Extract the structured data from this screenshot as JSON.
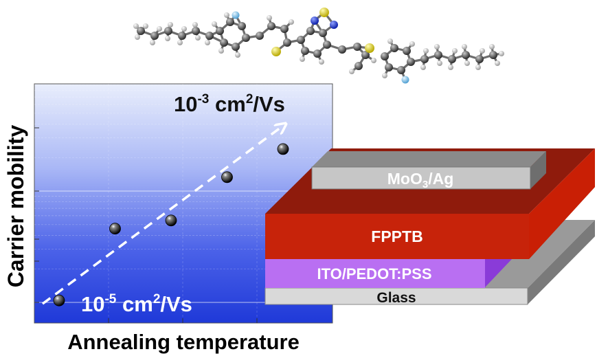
{
  "plot": {
    "y_axis_label": "Carrier mobility",
    "x_axis_label": "Annealing temperature",
    "high_value": {
      "base": "10",
      "exp": "-3",
      "unit_pre": " cm",
      "unit_sup": "2",
      "unit_post": "/Vs"
    },
    "low_value": {
      "base": "10",
      "exp": "-5",
      "unit_pre": " cm",
      "unit_sup": "2",
      "unit_post": "/Vs"
    }
  },
  "chart_data": {
    "type": "scatter",
    "title": "",
    "xlabel": "Annealing temperature",
    "ylabel": "Carrier mobility",
    "x_ticks_printed": false,
    "y_scale": "log",
    "ylim": [
      1e-05,
      0.001
    ],
    "y_range_labels": [
      "10-5 cm2/Vs",
      "10-3 cm2/Vs"
    ],
    "points": [
      {
        "x": 1,
        "y": 1.05e-05
      },
      {
        "x": 2,
        "y": 6.5e-05
      },
      {
        "x": 3,
        "y": 8e-05
      },
      {
        "x": 4,
        "y": 0.00024
      },
      {
        "x": 5,
        "y": 0.00049
      }
    ],
    "trend_arrow": "dashed, white, increasing from lower-left to upper-right",
    "grid": true,
    "background": "blue gradient"
  },
  "device": {
    "layers": [
      {
        "id": "top",
        "main": "MoO",
        "sub": "3",
        "rest": "/Ag",
        "color": "#c9c9c9"
      },
      {
        "id": "active",
        "main": "FPPTB",
        "sub": "",
        "rest": "",
        "color": "#c0240a"
      },
      {
        "id": "anode",
        "main": "ITO/PEDOT:PSS",
        "sub": "",
        "rest": "",
        "color": "#b26cf0"
      },
      {
        "id": "substrate",
        "main": "Glass",
        "sub": "",
        "rest": "",
        "color": "#d8d8d8"
      }
    ]
  },
  "molecule": {
    "name": "",
    "atom_colors": {
      "carbon": "#4a4a4a",
      "hydrogen": "#d9d9d9",
      "sulfur": "#e4dc2a",
      "nitrogen": "#2a3fd6",
      "fluorine": "#8ec6ea"
    }
  }
}
